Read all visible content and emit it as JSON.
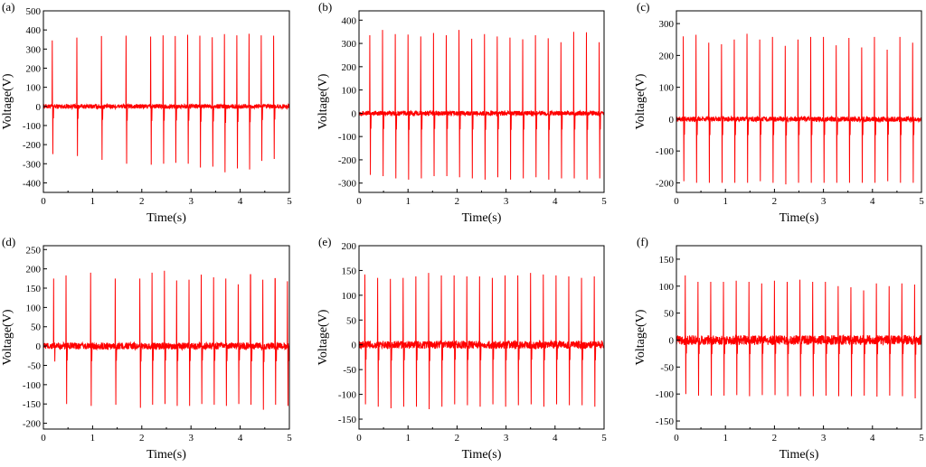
{
  "figure": {
    "line_color": "#ff0000",
    "axis_color": "#000000",
    "background": "#ffffff"
  },
  "chart_data": [
    {
      "label": "(a)",
      "type": "line",
      "xlabel": "Time(s)",
      "ylabel": "Voltage(V)",
      "xlim": [
        0,
        5
      ],
      "ylim": [
        -450,
        500
      ],
      "xticks": [
        0,
        1,
        2,
        3,
        4,
        5
      ],
      "yticks": [
        -400,
        -300,
        -200,
        -100,
        0,
        100,
        200,
        300,
        400,
        500
      ],
      "noise": 12,
      "peak_times": [
        0.18,
        0.43,
        0.68,
        0.93,
        1.18,
        1.43,
        1.68,
        1.93,
        2.18,
        2.43,
        2.68,
        2.93,
        3.18,
        3.43,
        3.68,
        3.93,
        4.18,
        4.43,
        4.68
      ],
      "peaks": [
        345,
        368,
        360,
        372,
        368,
        375,
        370,
        378,
        365,
        372,
        368,
        375,
        370,
        362,
        378,
        372,
        380,
        372,
        370
      ],
      "troughs": [
        -250,
        -275,
        -260,
        -290,
        -280,
        -285,
        -300,
        -310,
        -305,
        -300,
        -295,
        -300,
        -320,
        -315,
        -345,
        -325,
        -330,
        -285,
        -275
      ]
    },
    {
      "label": "(b)",
      "type": "line",
      "xlabel": "Time(s)",
      "ylabel": "Voltage(V)",
      "xlim": [
        0,
        5
      ],
      "ylim": [
        -340,
        440
      ],
      "xticks": [
        0,
        1,
        2,
        3,
        4,
        5
      ],
      "yticks": [
        -300,
        -200,
        -100,
        0,
        100,
        200,
        300,
        400
      ],
      "noise": 10,
      "peak_times": [
        0.22,
        0.48,
        0.74,
        1.0,
        1.26,
        1.52,
        1.78,
        2.04,
        2.3,
        2.56,
        2.82,
        3.08,
        3.34,
        3.6,
        3.86,
        4.12,
        4.38,
        4.64,
        4.9
      ],
      "peaks": [
        335,
        358,
        340,
        338,
        330,
        345,
        335,
        358,
        320,
        340,
        330,
        325,
        318,
        335,
        322,
        305,
        350,
        348,
        305
      ],
      "troughs": [
        -265,
        -270,
        -280,
        -285,
        -280,
        -270,
        -270,
        -275,
        -280,
        -285,
        -275,
        -285,
        -280,
        -275,
        -285,
        -280,
        -280,
        -285,
        -280
      ]
    },
    {
      "label": "(c)",
      "type": "line",
      "xlabel": "Time(s)",
      "ylabel": "Voltage(V)",
      "xlim": [
        0,
        5
      ],
      "ylim": [
        -230,
        340
      ],
      "xticks": [
        0,
        1,
        2,
        3,
        4,
        5
      ],
      "yticks": [
        -200,
        -100,
        0,
        100,
        200,
        300
      ],
      "noise": 8,
      "peak_times": [
        0.14,
        0.4,
        0.66,
        0.92,
        1.18,
        1.44,
        1.7,
        1.96,
        2.22,
        2.48,
        2.74,
        3.0,
        3.26,
        3.52,
        3.78,
        4.04,
        4.3,
        4.56,
        4.82
      ],
      "peaks": [
        260,
        265,
        240,
        235,
        250,
        268,
        250,
        258,
        230,
        250,
        258,
        258,
        232,
        255,
        225,
        258,
        218,
        258,
        240
      ],
      "troughs": [
        -195,
        -200,
        -200,
        -200,
        -200,
        -200,
        -195,
        -200,
        -205,
        -200,
        -200,
        -200,
        -200,
        -200,
        -200,
        -200,
        -195,
        -200,
        -200
      ]
    },
    {
      "label": "(d)",
      "type": "line",
      "xlabel": "Time(s)",
      "ylabel": "Voltage(V)",
      "xlim": [
        0,
        5
      ],
      "ylim": [
        -215,
        260
      ],
      "xticks": [
        0,
        1,
        2,
        3,
        4,
        5
      ],
      "yticks": [
        -200,
        -150,
        -100,
        -50,
        0,
        50,
        100,
        150,
        200,
        250
      ],
      "noise": 9,
      "peak_times": [
        0.21,
        0.46,
        0.71,
        0.96,
        1.21,
        1.46,
        1.71,
        1.96,
        2.21,
        2.46,
        2.71,
        2.96,
        3.21,
        3.46,
        3.71,
        3.96,
        4.21,
        4.46,
        4.71,
        4.96
      ],
      "peaks": [
        175,
        183,
        200,
        190,
        175,
        175,
        178,
        175,
        190,
        195,
        170,
        172,
        185,
        178,
        175,
        160,
        185,
        172,
        175,
        168
      ],
      "troughs": [
        -160,
        -150,
        -160,
        -155,
        -150,
        -152,
        -150,
        -160,
        -152,
        -150,
        -155,
        -155,
        -150,
        -152,
        -155,
        -150,
        -152,
        -165,
        -152,
        -155
      ]
    },
    {
      "label": "(e)",
      "type": "line",
      "xlabel": "Time(s)",
      "ylabel": "Voltage(V)",
      "xlim": [
        0,
        5
      ],
      "ylim": [
        -170,
        200
      ],
      "xticks": [
        0,
        1,
        2,
        3,
        4,
        5
      ],
      "yticks": [
        -150,
        -100,
        -50,
        0,
        50,
        100,
        150,
        200
      ],
      "noise": 8,
      "peak_times": [
        0.12,
        0.38,
        0.64,
        0.9,
        1.16,
        1.42,
        1.68,
        1.94,
        2.2,
        2.46,
        2.72,
        2.98,
        3.24,
        3.5,
        3.76,
        4.02,
        4.28,
        4.54,
        4.8
      ],
      "peaks": [
        142,
        135,
        133,
        135,
        138,
        145,
        140,
        140,
        138,
        138,
        135,
        140,
        140,
        145,
        142,
        140,
        138,
        135,
        138
      ],
      "troughs": [
        -120,
        -125,
        -128,
        -125,
        -125,
        -130,
        -125,
        -120,
        -122,
        -125,
        -120,
        -125,
        -122,
        -120,
        -125,
        -120,
        -122,
        -122,
        -125
      ]
    },
    {
      "label": "(f)",
      "type": "line",
      "xlabel": "Time(s)",
      "ylabel": "Voltage(V)",
      "xlim": [
        0,
        5
      ],
      "ylim": [
        -165,
        175
      ],
      "xticks": [
        0,
        1,
        2,
        3,
        4,
        5
      ],
      "yticks": [
        -150,
        -100,
        -50,
        0,
        50,
        100,
        150
      ],
      "noise": 9,
      "peak_times": [
        0.18,
        0.44,
        0.7,
        0.96,
        1.22,
        1.48,
        1.74,
        2.0,
        2.26,
        2.52,
        2.78,
        3.04,
        3.3,
        3.56,
        3.82,
        4.08,
        4.34,
        4.6,
        4.86
      ],
      "peaks": [
        120,
        108,
        108,
        108,
        110,
        108,
        105,
        110,
        108,
        112,
        108,
        108,
        100,
        98,
        92,
        105,
        100,
        105,
        103
      ],
      "troughs": [
        -100,
        -103,
        -103,
        -103,
        -102,
        -104,
        -102,
        -102,
        -104,
        -104,
        -104,
        -103,
        -104,
        -104,
        -103,
        -105,
        -103,
        -104,
        -108
      ]
    }
  ]
}
